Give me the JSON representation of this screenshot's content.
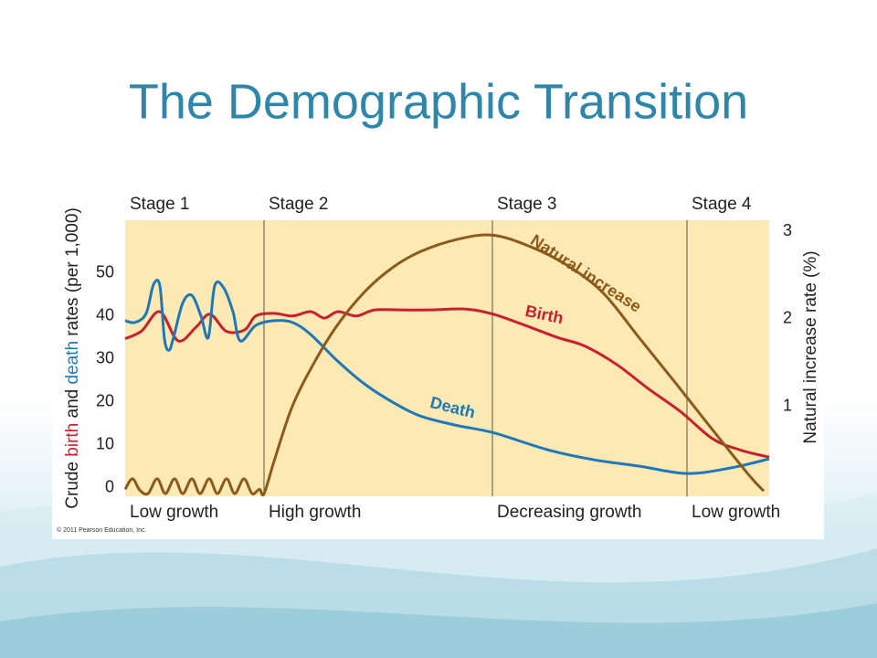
{
  "title": "The Demographic Transition",
  "copyright": "© 2011 Pearson Education, Inc.",
  "chart_data": {
    "type": "line",
    "ylabel": [
      "Crude ",
      "birth",
      " and ",
      "death",
      " rates (per 1,000)"
    ],
    "y2label": "Natural increase rate (%)",
    "xlim": [
      0,
      705
    ],
    "ylim": [
      -2,
      62.3
    ],
    "yticks": [
      0,
      10,
      20,
      30,
      40,
      50
    ],
    "y2lim": [
      -0.03,
      3.13
    ],
    "y2ticks": [
      1,
      2,
      3
    ],
    "grid": false,
    "stages": [
      {
        "name": "Stage 1",
        "phase": "Low growth",
        "start": 0
      },
      {
        "name": "Stage 2",
        "phase": "High growth",
        "start": 152
      },
      {
        "name": "Stage 3",
        "phase": "Decreasing growth",
        "start": 402
      },
      {
        "name": "Stage 4",
        "phase": "Low growth",
        "start": 615
      }
    ],
    "series": [
      {
        "name": "Birth",
        "color": "#c8202f",
        "x": [
          0,
          18,
          38,
          58,
          78,
          93,
          111,
          131,
          143,
          163,
          183,
          203,
          218,
          233,
          253,
          273,
          303,
          333,
          373,
          403,
          438,
          473,
          503,
          538,
          573,
          608,
          643,
          673,
          705
        ],
        "values": [
          34.7,
          36.5,
          41,
          34.2,
          37.5,
          40.4,
          36.4,
          36.8,
          40,
          40.6,
          40,
          41,
          39.5,
          41,
          40,
          41.4,
          41.4,
          41.4,
          41.6,
          40.4,
          37.8,
          35,
          33,
          28.7,
          23,
          17.7,
          11.4,
          8.8,
          7.1
        ]
      },
      {
        "name": "Death",
        "color": "#1f78b8",
        "x": [
          0,
          11,
          23,
          31,
          38,
          43,
          48,
          53,
          63,
          73,
          83,
          91,
          98,
          108,
          118,
          126,
          143,
          163,
          183,
          203,
          233,
          263,
          293,
          323,
          363,
          403,
          463,
          513,
          563,
          615,
          663,
          705
        ],
        "values": [
          38.9,
          38.5,
          40.6,
          47.3,
          47,
          34.7,
          32,
          35,
          43,
          44.8,
          40,
          35,
          47,
          46.5,
          41,
          34.2,
          37.8,
          38.9,
          38.5,
          35.7,
          29.4,
          24,
          19.9,
          16.7,
          14.5,
          12.8,
          8.8,
          6.5,
          5,
          3.3,
          4.6,
          6.7
        ]
      },
      {
        "name": "Natural increase",
        "color": "#8b5a1c",
        "axis": "y2",
        "x": [
          0,
          8,
          16,
          25,
          35,
          44,
          54,
          63,
          73,
          82,
          92,
          101,
          111,
          120,
          130,
          139,
          147,
          152,
          163,
          183,
          208,
          233,
          263,
          293,
          323,
          363,
          402,
          443,
          483,
          523,
          563,
          603,
          643,
          683,
          699
        ],
        "values": [
          0.05,
          0.17,
          0.04,
          0,
          0.17,
          0,
          0.17,
          0,
          0.17,
          0,
          0.17,
          0,
          0.17,
          0,
          0.17,
          0,
          0.05,
          0,
          0.37,
          1.0,
          1.52,
          1.94,
          2.32,
          2.59,
          2.77,
          2.91,
          2.96,
          2.83,
          2.62,
          2.3,
          1.78,
          1.26,
          0.73,
          0.21,
          0.03
        ]
      }
    ]
  }
}
